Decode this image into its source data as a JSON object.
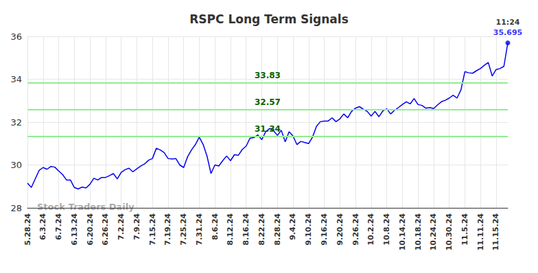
{
  "chart_data": {
    "type": "line",
    "title": "RSPC Long Term Signals",
    "watermark": "Stock Traders Daily",
    "color": "#0000ee",
    "grid": true,
    "ylim": [
      28,
      36
    ],
    "yticks": [
      28,
      30,
      32,
      34,
      36
    ],
    "levels": [
      33.83,
      32.57,
      31.34
    ],
    "level_color": "#90ee90",
    "level_label_color": "#006400",
    "last_point_time": "11:24",
    "categories": [
      "5.28.24",
      null,
      null,
      null,
      "6.3.24",
      null,
      null,
      null,
      "6.7.24",
      null,
      null,
      null,
      "6.13.24",
      null,
      null,
      null,
      "6.20.24",
      null,
      null,
      null,
      "6.26.24",
      null,
      null,
      null,
      "7.2.24",
      null,
      null,
      null,
      "7.9.24",
      null,
      null,
      null,
      "7.15.24",
      null,
      null,
      null,
      "7.19.24",
      null,
      null,
      null,
      "7.25.24",
      null,
      null,
      null,
      "7.31.24",
      null,
      null,
      null,
      "8.6.24",
      null,
      null,
      null,
      "8.12.24",
      null,
      null,
      null,
      "8.16.24",
      null,
      null,
      null,
      "8.22.24",
      null,
      null,
      null,
      "8.28.24",
      null,
      null,
      null,
      "9.4.24",
      null,
      null,
      null,
      "9.10.24",
      null,
      null,
      null,
      "9.16.24",
      null,
      null,
      null,
      "9.20.24",
      null,
      null,
      null,
      "9.26.24",
      null,
      null,
      null,
      "10.2.24",
      null,
      null,
      null,
      "10.8.24",
      null,
      null,
      null,
      "10.14.24",
      null,
      null,
      null,
      "10.18.24",
      null,
      null,
      null,
      "10.24.24",
      null,
      null,
      null,
      "10.30.24",
      null,
      null,
      null,
      "11.5.24",
      null,
      null,
      null,
      "11.11.24",
      null,
      null,
      null,
      "11.15.24",
      null,
      null,
      null
    ],
    "values": [
      29.15,
      28.95,
      29.35,
      29.75,
      29.88,
      29.8,
      29.93,
      29.9,
      29.72,
      29.55,
      29.3,
      29.3,
      28.95,
      28.88,
      28.97,
      28.93,
      29.1,
      29.38,
      29.3,
      29.42,
      29.42,
      29.5,
      29.6,
      29.35,
      29.65,
      29.78,
      29.85,
      29.68,
      29.82,
      29.95,
      30.05,
      30.22,
      30.3,
      30.78,
      30.7,
      30.58,
      30.3,
      30.28,
      30.3,
      30.0,
      29.88,
      30.38,
      30.7,
      30.95,
      31.3,
      30.95,
      30.4,
      29.6,
      30.0,
      29.95,
      30.2,
      30.42,
      30.2,
      30.48,
      30.45,
      30.72,
      30.88,
      31.25,
      31.28,
      31.4,
      31.18,
      31.55,
      31.7,
      31.6,
      31.38,
      31.62,
      31.08,
      31.55,
      31.35,
      30.95,
      31.1,
      31.05,
      31.0,
      31.3,
      31.8,
      32.02,
      32.05,
      32.05,
      32.2,
      32.02,
      32.15,
      32.38,
      32.2,
      32.5,
      32.65,
      32.72,
      32.6,
      32.5,
      32.28,
      32.5,
      32.25,
      32.52,
      32.62,
      32.38,
      32.55,
      32.68,
      32.82,
      32.95,
      32.85,
      33.1,
      32.82,
      32.78,
      32.65,
      32.68,
      32.63,
      32.8,
      32.95,
      33.02,
      33.12,
      33.25,
      33.12,
      33.5,
      34.35,
      34.3,
      34.28,
      34.4,
      34.5,
      34.65,
      34.78,
      34.15,
      34.45,
      34.5,
      34.6,
      35.695
    ]
  }
}
